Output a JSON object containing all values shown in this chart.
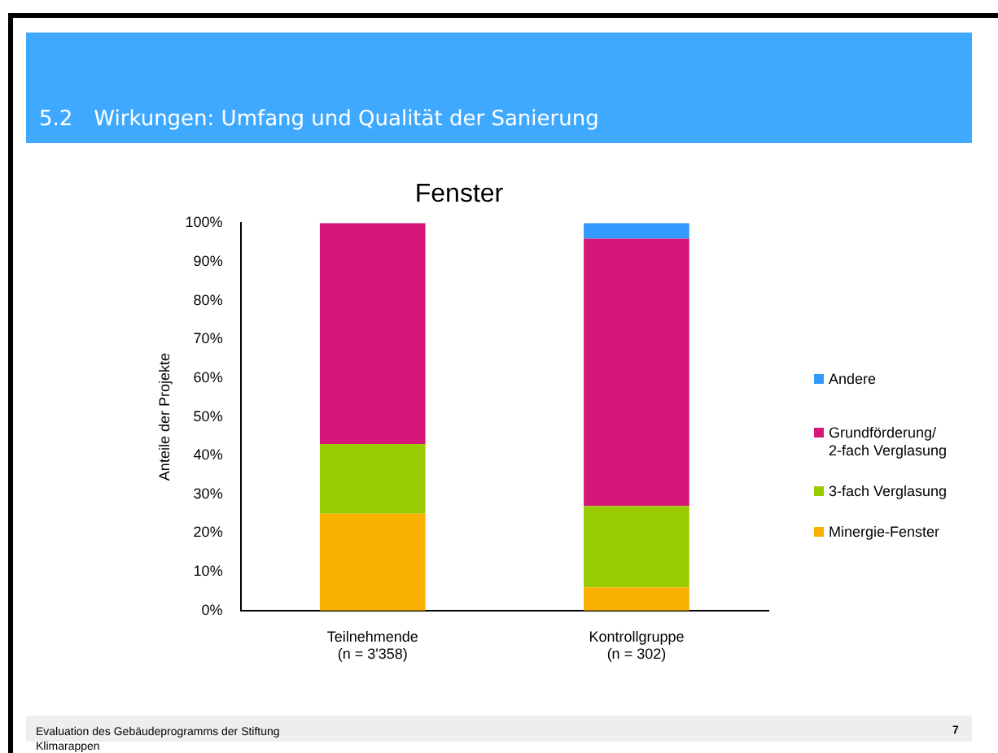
{
  "chart_data": {
    "type": "bar",
    "title": "Fenster",
    "subtitle": "5.2 Wirkungen: Umfang und Qualität der Sanierung",
    "ylabel": "Anteile der Projekte",
    "categories": [
      "Teilnehmende\n(n = 3'358)",
      "Kontrollgruppe\n(n = 302)"
    ],
    "stacked": true,
    "series": [
      {
        "name": "Minergie-Fenster",
        "color": "#f9b000",
        "values": [
          25,
          6
        ]
      },
      {
        "name": "3-fach Verglasung",
        "color": "#99cc00",
        "values": [
          18,
          21
        ]
      },
      {
        "name": "Grundförderung/\n2-fach Verglasung",
        "color": "#d6177a",
        "values": [
          57,
          69
        ]
      },
      {
        "name": "Andere",
        "color": "#3399ff",
        "values": [
          0,
          4
        ]
      }
    ],
    "ylim": [
      0,
      100
    ],
    "yticks": [
      {
        "value": 0,
        "label": "0%"
      },
      {
        "value": 10,
        "label": "10%"
      },
      {
        "value": 20,
        "label": "20%"
      },
      {
        "value": 30,
        "label": "30%"
      },
      {
        "value": 40,
        "label": "40%"
      },
      {
        "value": 50,
        "label": "50%"
      },
      {
        "value": 60,
        "label": "60%"
      },
      {
        "value": 70,
        "label": "70%"
      },
      {
        "value": 80,
        "label": "80%"
      },
      {
        "value": 90,
        "label": "90%"
      },
      {
        "value": 100,
        "label": "100%"
      }
    ],
    "grid": false,
    "legend": "right",
    "annotations": [
      "Evaluation des Gebäudeprogramms der Stiftung\nKlimarappen",
      "7"
    ]
  }
}
